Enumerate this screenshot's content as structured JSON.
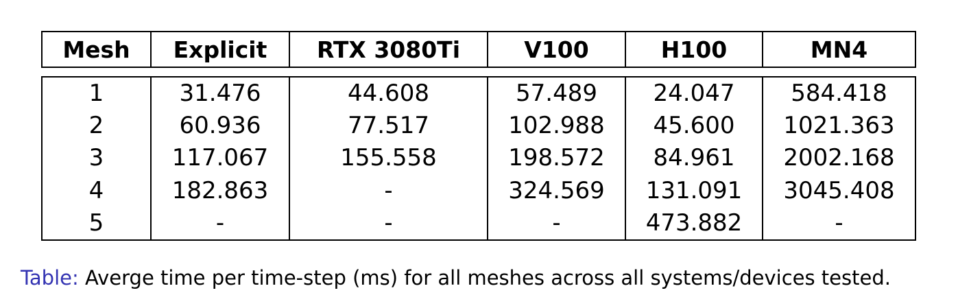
{
  "table": {
    "headers": [
      "Mesh",
      "Explicit",
      "RTX 3080Ti",
      "V100",
      "H100",
      "MN4"
    ],
    "rows": [
      [
        "1",
        "31.476",
        "44.608",
        "57.489",
        "24.047",
        "584.418"
      ],
      [
        "2",
        "60.936",
        "77.517",
        "102.988",
        "45.600",
        "1021.363"
      ],
      [
        "3",
        "117.067",
        "155.558",
        "198.572",
        "84.961",
        "2002.168"
      ],
      [
        "4",
        "182.863",
        "-",
        "324.569",
        "131.091",
        "3045.408"
      ],
      [
        "5",
        "-",
        "-",
        "-",
        "473.882",
        "-"
      ]
    ]
  },
  "caption": {
    "label": "Table:",
    "text": "Averge time per time-step (ms) for all meshes across all systems/devices tested."
  },
  "colors": {
    "caption_label": "#3333b2",
    "text": "#000000"
  }
}
